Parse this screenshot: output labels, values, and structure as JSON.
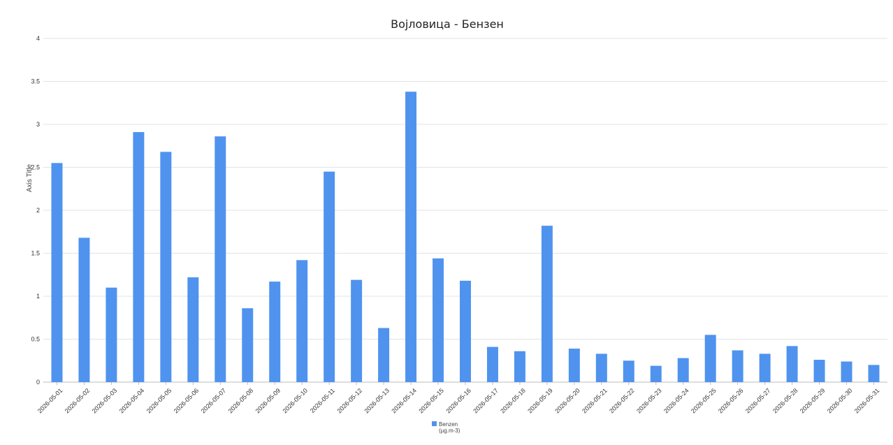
{
  "chart_data": {
    "type": "bar",
    "title": "Војловица - Бензен",
    "ylabel": "Axis Title",
    "xlabel": "",
    "ylim": [
      0,
      4
    ],
    "yticks": [
      "0",
      "0.5",
      "1",
      "1.5",
      "2",
      "2.5",
      "3",
      "3.5",
      "4"
    ],
    "grid": true,
    "legend": "bottom-center",
    "bar_color": "#4f93ef",
    "categories": [
      "2026-05-01",
      "2026-05-02",
      "2026-05-03",
      "2026-05-04",
      "2026-05-05",
      "2026-05-06",
      "2026-05-07",
      "2026-05-08",
      "2026-05-09",
      "2026-05-10",
      "2026-05-11",
      "2026-05-12",
      "2026-05-13",
      "2026-05-14",
      "2026-05-15",
      "2026-05-16",
      "2026-05-17",
      "2026-05-18",
      "2026-05-19",
      "2026-05-20",
      "2026-05-21",
      "2026-05-22",
      "2026-05-23",
      "2026-05-24",
      "2026-05-25",
      "2026-05-26",
      "2026-05-27",
      "2026-05-28",
      "2026-05-29",
      "2026-05-30",
      "2026-05-31"
    ],
    "series": [
      {
        "name": "Benzen",
        "name_line2": "(µg.m-3)",
        "values": [
          2.55,
          1.68,
          1.1,
          2.91,
          2.68,
          1.22,
          2.86,
          0.86,
          1.17,
          1.42,
          2.45,
          1.19,
          0.63,
          3.38,
          1.44,
          1.18,
          0.41,
          0.36,
          1.82,
          0.39,
          0.33,
          0.25,
          0.19,
          0.28,
          0.55,
          0.37,
          0.33,
          0.42,
          0.26,
          0.24,
          0.2
        ]
      }
    ]
  }
}
